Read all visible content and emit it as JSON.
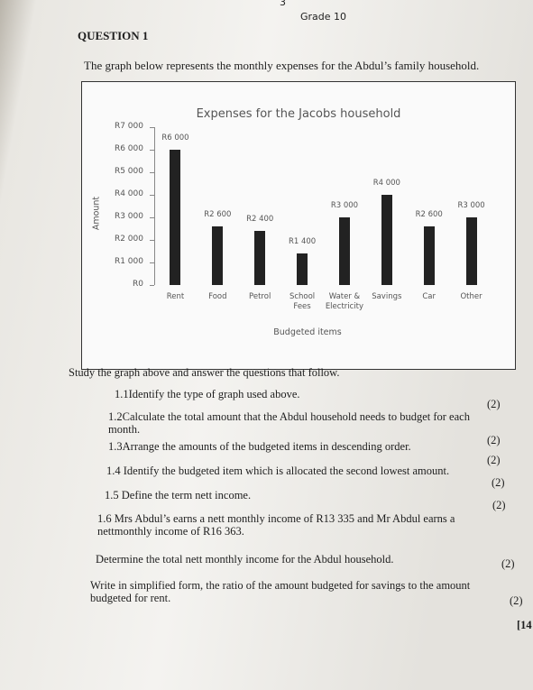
{
  "page_number": "3",
  "grade": "Grade 10",
  "question_heading": "QUESTION 1",
  "intro": "The graph below represents the monthly expenses for the Abdul’s family household.",
  "chart_data": {
    "type": "bar",
    "title": "Expenses for the Jacobs household",
    "x_label": "Budgeted items",
    "y_label": "Amount",
    "categories": [
      "Rent",
      "Food",
      "Petrol",
      "School Fees",
      "Water & Electricity",
      "Savings",
      "Car",
      "Other"
    ],
    "values": [
      6000,
      2600,
      2400,
      1400,
      3000,
      4000,
      2600,
      3000
    ],
    "value_labels": [
      "R6 000",
      "R2 600",
      "R2 400",
      "R1 400",
      "R3 000",
      "R4 000",
      "R2 600",
      "R3 000"
    ],
    "color": "#222222",
    "ylim": [
      0,
      7000
    ],
    "yticks": [
      {
        "value": 0,
        "label": "R0"
      },
      {
        "value": 1000,
        "label": "R1 000"
      },
      {
        "value": 2000,
        "label": "R2 000"
      },
      {
        "value": 3000,
        "label": "R3 000"
      },
      {
        "value": 4000,
        "label": "R4 000"
      },
      {
        "value": 5000,
        "label": "R5 000"
      },
      {
        "value": 6000,
        "label": "R6 000"
      },
      {
        "value": 7000,
        "label": "R7 000"
      }
    ]
  },
  "instruction": "Study the graph above and answer the questions that follow.",
  "questions": [
    {
      "text": "1.1Identify the type of graph used above.",
      "marks": "(2)"
    },
    {
      "text": "1.2Calculate the total amount that the Abdul household needs to budget for each month.",
      "marks": "(2)"
    },
    {
      "text": "1.3Arrange the amounts of the budgeted items in descending order.",
      "marks": "(2)"
    },
    {
      "text": "1.4 Identify the budgeted item which is allocated the second lowest amount.",
      "marks": "(2)"
    },
    {
      "text": "1.5 Define the term nett income.",
      "marks": "(2)"
    },
    {
      "text": "1.6 Mrs Abdul’s earns a nett monthly income of R13 335 and Mr Abdul earns a nettmonthly income of R16 363."
    },
    {
      "text": "Determine the total nett monthly income for the Abdul household.",
      "marks": "(2)"
    },
    {
      "text": "Write in simplified form, the ratio of the amount budgeted for savings to the amount budgeted for rent.",
      "marks": "(2)"
    }
  ],
  "total": "[14"
}
